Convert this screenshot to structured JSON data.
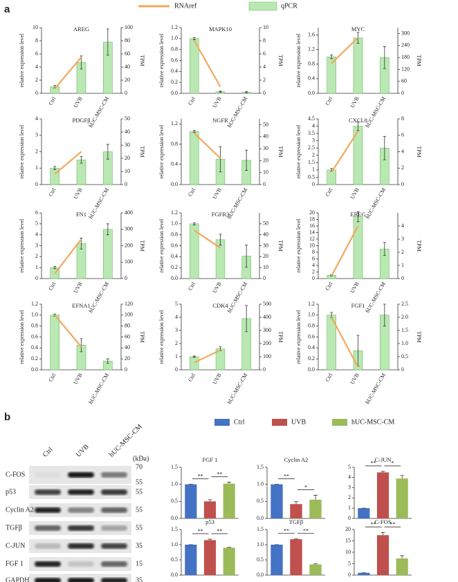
{
  "panel_labels": [
    "a",
    "b"
  ],
  "legend_a": [
    {
      "name": "RNAref",
      "color": "#f2a85c"
    },
    {
      "name": "qPCR",
      "color": "#b9e8b2"
    }
  ],
  "legend_b": [
    {
      "name": "Ctrl",
      "color": "#4472c4"
    },
    {
      "name": "UVB",
      "color": "#c0504d"
    },
    {
      "name": "hUC-MSC-CM",
      "color": "#9bbb59"
    }
  ],
  "chart_data": [
    {
      "type": "combo",
      "title": "AREG",
      "categories": [
        "Ctrl",
        "UVB",
        "hUC-MSC-CM"
      ],
      "ylabel": "relative expression level",
      "y2label": "TPM",
      "ylim": [
        0,
        10
      ],
      "yticks": [
        0,
        2,
        4,
        6,
        8,
        10
      ],
      "y2lim": [
        0,
        100
      ],
      "y2ticks": [
        0,
        20,
        40,
        60,
        80,
        100
      ],
      "series": [
        {
          "color": "#b9e8b2",
          "values": [
            1,
            4.7,
            7.8
          ],
          "errors": [
            0.2,
            1,
            2
          ]
        },
        {
          "color": "#f2a85c",
          "axis": "y2",
          "values": [
            7,
            55,
            null
          ]
        }
      ]
    },
    {
      "type": "combo",
      "title": "MAPK10",
      "categories": [
        "Ctrl",
        "UVB",
        "hUC-MSC-CM"
      ],
      "ylabel": "relative expression level",
      "y2label": "TPM",
      "ylim": [
        0,
        1.2
      ],
      "yticks": [
        {
          "value": 0,
          "label": "0.0"
        },
        0.2,
        0.4,
        0.6,
        0.8,
        {
          "value": 1,
          "label": "1.0"
        },
        1.2
      ],
      "y2lim": [
        0,
        10
      ],
      "y2ticks": [
        0,
        2,
        4,
        6,
        8,
        10
      ],
      "series": [
        {
          "color": "#b9e8b2",
          "values": [
            1.0,
            0.03,
            0.02
          ],
          "errors": [
            0.02,
            0.01,
            0.01
          ]
        },
        {
          "color": "#f2a85c",
          "axis": "y2",
          "values": [
            8,
            1,
            null
          ]
        }
      ]
    },
    {
      "type": "combo",
      "title": "MYC",
      "categories": [
        "Ctrl",
        "UVB",
        "hUC-MSC-CM"
      ],
      "ylabel": "relative expression level",
      "y2label": "TPM",
      "ylim": [
        0,
        1.8
      ],
      "yticks": [
        {
          "value": 0,
          "label": "0.0"
        },
        0.4,
        0.8,
        1.2,
        1.6
      ],
      "y2lim": [
        0,
        330
      ],
      "y2ticks": [
        0,
        60,
        120,
        180,
        240,
        300
      ],
      "series": [
        {
          "color": "#b9e8b2",
          "values": [
            1.0,
            1.52,
            0.98
          ],
          "errors": [
            0.05,
            0.15,
            0.3
          ]
        },
        {
          "color": "#f2a85c",
          "axis": "y2",
          "values": [
            150,
            280,
            null
          ]
        }
      ]
    },
    {
      "type": "combo",
      "title": "PDGFβ",
      "categories": [
        "Ctrl",
        "UVB",
        "hUC-MSC-CM"
      ],
      "ylabel": "relative expression level",
      "y2label": "TPM",
      "ylim": [
        0,
        4
      ],
      "yticks": [
        0,
        1,
        2,
        3,
        4
      ],
      "y2lim": [
        0,
        50
      ],
      "y2ticks": [
        0,
        10,
        20,
        30,
        40,
        50
      ],
      "series": [
        {
          "color": "#b9e8b2",
          "values": [
            1,
            1.5,
            2
          ],
          "errors": [
            0.1,
            0.2,
            0.45
          ]
        },
        {
          "color": "#f2a85c",
          "axis": "y2",
          "values": [
            8,
            25,
            null
          ]
        }
      ]
    },
    {
      "type": "combo",
      "title": "NGFR",
      "categories": [
        "Ctrl",
        "UVB",
        "hUC-MSC-CM"
      ],
      "ylabel": "relative expression level",
      "y2label": "TPM",
      "ylim": [
        0,
        1.3
      ],
      "yticks": [
        {
          "value": 0,
          "label": "0.0"
        },
        0.4,
        0.8,
        1.2
      ],
      "y2lim": [
        0,
        55
      ],
      "y2ticks": [
        0,
        10,
        20,
        30,
        40,
        50
      ],
      "series": [
        {
          "color": "#b9e8b2",
          "values": [
            1.05,
            0.5,
            0.48
          ],
          "errors": [
            0.02,
            0.25,
            0.2
          ]
        },
        {
          "color": "#f2a85c",
          "axis": "y2",
          "values": [
            43,
            22,
            null
          ]
        }
      ]
    },
    {
      "type": "combo",
      "title": "CXCL8",
      "categories": [
        "Ctrl",
        "UVB",
        "hUC-MSC-CM"
      ],
      "ylabel": "relative expression level",
      "y2label": "TPM",
      "ylim": [
        0,
        4.5
      ],
      "yticks": [
        0,
        0.5,
        1,
        1.5,
        2,
        2.5,
        3,
        3.5,
        4,
        4.5
      ],
      "y2lim": [
        0,
        8
      ],
      "y2ticks": [
        0,
        2,
        4,
        6,
        8
      ],
      "series": [
        {
          "color": "#b9e8b2",
          "values": [
            1,
            4,
            2.5
          ],
          "errors": [
            0.1,
            0.3,
            0.8
          ]
        },
        {
          "color": "#f2a85c",
          "axis": "y2",
          "values": [
            1.5,
            6.5,
            null
          ]
        }
      ]
    },
    {
      "type": "combo",
      "title": "FN1",
      "categories": [
        "Ctrl",
        "UVB",
        "hUC-MSC-CM"
      ],
      "ylabel": "relative expression level",
      "y2label": "TPM",
      "ylim": [
        0,
        6
      ],
      "yticks": [
        0,
        1,
        2,
        3,
        4,
        5,
        6
      ],
      "y2lim": [
        0,
        400
      ],
      "y2ticks": [
        0,
        100,
        200,
        300,
        400
      ],
      "series": [
        {
          "color": "#b9e8b2",
          "values": [
            1,
            3.2,
            4.5
          ],
          "errors": [
            0.1,
            0.5,
            0.5
          ]
        },
        {
          "color": "#f2a85c",
          "axis": "y2",
          "values": [
            30,
            240,
            null
          ]
        }
      ]
    },
    {
      "type": "combo",
      "title": "FGFR3",
      "categories": [
        "Ctrl",
        "UVB",
        "hUC-MSC-CM"
      ],
      "ylabel": "relative expression level",
      "y2label": "TPM",
      "ylim": [
        0,
        1.2
      ],
      "yticks": [
        {
          "value": 0,
          "label": "0.0"
        },
        0.2,
        0.4,
        0.6,
        0.8,
        {
          "value": 1,
          "label": "1.0"
        },
        1.2
      ],
      "y2lim": [
        0,
        60
      ],
      "y2ticks": [
        0,
        10,
        20,
        30,
        40,
        50
      ],
      "series": [
        {
          "color": "#b9e8b2",
          "values": [
            1.0,
            0.71,
            0.41
          ],
          "errors": [
            0.02,
            0.1,
            0.2
          ]
        },
        {
          "color": "#f2a85c",
          "axis": "y2",
          "values": [
            44,
            28,
            null
          ]
        }
      ]
    },
    {
      "type": "combo",
      "title": "EREG",
      "categories": [
        "Ctrl",
        "UVB",
        "hUC-MSC-CM"
      ],
      "ylabel": "relative expression level",
      "y2label": "TPM",
      "ylim": [
        0,
        20
      ],
      "yticks": [
        0,
        2,
        4,
        6,
        8,
        10,
        12,
        14,
        16,
        18,
        20
      ],
      "y2lim": [
        0,
        5
      ],
      "y2ticks": [
        0,
        1,
        2,
        3,
        4
      ],
      "series": [
        {
          "color": "#b9e8b2",
          "values": [
            1,
            18.8,
            9
          ],
          "errors": [
            0.2,
            1.5,
            2
          ]
        },
        {
          "color": "#f2a85c",
          "axis": "y2",
          "values": [
            0.2,
            4,
            null
          ]
        }
      ]
    },
    {
      "type": "combo",
      "title": "EFNA1",
      "categories": [
        "Ctrl",
        "UVB",
        "hUC-MSC-CM"
      ],
      "ylabel": "relative expression level",
      "y2label": "TPM",
      "ylim": [
        0,
        1.2
      ],
      "yticks": [
        {
          "value": 0,
          "label": "0.0"
        },
        0.2,
        0.4,
        0.6,
        0.8,
        {
          "value": 1,
          "label": "1.0"
        },
        1.2
      ],
      "y2lim": [
        0,
        120
      ],
      "y2ticks": [
        0,
        20,
        40,
        60,
        80,
        100,
        120
      ],
      "series": [
        {
          "color": "#b9e8b2",
          "values": [
            1.0,
            0.45,
            0.16
          ],
          "errors": [
            0.02,
            0.12,
            0.04
          ]
        },
        {
          "color": "#f2a85c",
          "axis": "y2",
          "values": [
            100,
            42,
            null
          ]
        }
      ]
    },
    {
      "type": "combo",
      "title": "CDK4",
      "categories": [
        "Ctrl",
        "UVB",
        "hUC-MSC-CM"
      ],
      "ylabel": "relative expression level",
      "y2label": "TPM",
      "ylim": [
        0,
        5
      ],
      "yticks": [
        0,
        1,
        2,
        3,
        4,
        5
      ],
      "y2lim": [
        0,
        500
      ],
      "y2ticks": [
        0,
        100,
        200,
        300,
        400,
        500
      ],
      "series": [
        {
          "color": "#b9e8b2",
          "values": [
            1,
            1.6,
            3.9
          ],
          "errors": [
            0.05,
            0.15,
            1
          ]
        },
        {
          "color": "#f2a85c",
          "axis": "y2",
          "values": [
            55,
            150,
            null
          ]
        }
      ]
    },
    {
      "type": "combo",
      "title": "FGF1",
      "categories": [
        "Ctrl",
        "UVB",
        "hUC-MSC-CM"
      ],
      "ylabel": "relative expression level",
      "y2label": "TPM",
      "ylim": [
        0,
        1.2
      ],
      "yticks": [
        {
          "value": 0,
          "label": "0.0"
        },
        0.2,
        0.4,
        0.6,
        0.8,
        {
          "value": 1,
          "label": "1.0"
        },
        1.2
      ],
      "y2lim": [
        0,
        2.5
      ],
      "y2ticks": [
        0,
        0.5,
        {
          "value": 1,
          "label": "1.0"
        },
        1.5,
        {
          "value": 2,
          "label": "2.0"
        },
        2.5
      ],
      "series": [
        {
          "color": "#b9e8b2",
          "values": [
            1.0,
            0.35,
            1.0
          ],
          "errors": [
            0.05,
            0.28,
            0.2
          ]
        },
        {
          "color": "#f2a85c",
          "axis": "y2",
          "values": [
            2.0,
            0.1,
            null
          ]
        }
      ]
    },
    {
      "type": "bar",
      "title": "FGF 1",
      "ylim": [
        0,
        1.5
      ],
      "yticks": [
        {
          "value": 0,
          "label": "0.0"
        },
        0.5,
        {
          "value": 1,
          "label": "1.0"
        },
        1.5
      ],
      "values": [
        1.0,
        0.5,
        1.02
      ],
      "errors": [
        0,
        0.05,
        0.04
      ],
      "significance": [
        "**",
        "**"
      ]
    },
    {
      "type": "bar",
      "title": "Cyclin A2",
      "ylim": [
        0,
        1.5
      ],
      "yticks": [
        {
          "value": 0,
          "label": "0.0"
        },
        0.5,
        {
          "value": 1,
          "label": "1.0"
        },
        1.5
      ],
      "values": [
        1.0,
        0.42,
        0.55
      ],
      "errors": [
        0,
        0.07,
        0.13
      ],
      "significance": [
        "**",
        "*"
      ]
    },
    {
      "type": "bar",
      "title": "C-JUN",
      "ylim": [
        0,
        5
      ],
      "yticks": [
        0,
        1,
        2,
        3,
        4,
        5
      ],
      "values": [
        1,
        4.5,
        3.9
      ],
      "errors": [
        0,
        0.1,
        0.3
      ],
      "significance": [
        "**",
        "*"
      ]
    },
    {
      "type": "bar",
      "title": "p53",
      "ylim": [
        0,
        1.5
      ],
      "yticks": [
        {
          "value": 0,
          "label": "0.0"
        },
        0.5,
        {
          "value": 1,
          "label": "1.0"
        },
        1.5
      ],
      "values": [
        1.0,
        1.15,
        0.9
      ],
      "errors": [
        0,
        0.03,
        0.01
      ],
      "significance": [
        "**",
        "**"
      ]
    },
    {
      "type": "bar",
      "title": "TGFβ",
      "ylim": [
        0,
        1.5
      ],
      "yticks": [
        {
          "value": 0,
          "label": "0.0"
        },
        0.5,
        {
          "value": 1,
          "label": "1.0"
        },
        1.5
      ],
      "values": [
        1.0,
        1.18,
        0.35
      ],
      "errors": [
        0,
        0.01,
        0.02
      ],
      "significance": [
        "**",
        "**"
      ]
    },
    {
      "type": "bar",
      "title": "C-FOS",
      "ylim": [
        0,
        20
      ],
      "yticks": [
        0,
        5,
        10,
        15,
        20
      ],
      "values": [
        1,
        17.5,
        7.3
      ],
      "errors": [
        0,
        1.2,
        1.2
      ],
      "significance": [
        "**",
        "**"
      ]
    }
  ],
  "blot": {
    "lanes": [
      "Ctrl",
      "UVB",
      "hUC-MSC-CM"
    ],
    "unit": "(kDa)",
    "rows": [
      {
        "label": "C-FOS",
        "kda": [
          70,
          55
        ]
      },
      {
        "label": "p53",
        "kda": [
          55
        ]
      },
      {
        "label": "Cyclin A2",
        "kda": [
          55
        ]
      },
      {
        "label": "TGFβ",
        "kda": [
          55
        ]
      },
      {
        "label": "C-JUN",
        "kda": [
          35
        ]
      },
      {
        "label": "FGF 1",
        "kda": [
          15
        ]
      },
      {
        "label": "GAPDH",
        "kda": [
          35
        ]
      }
    ]
  }
}
